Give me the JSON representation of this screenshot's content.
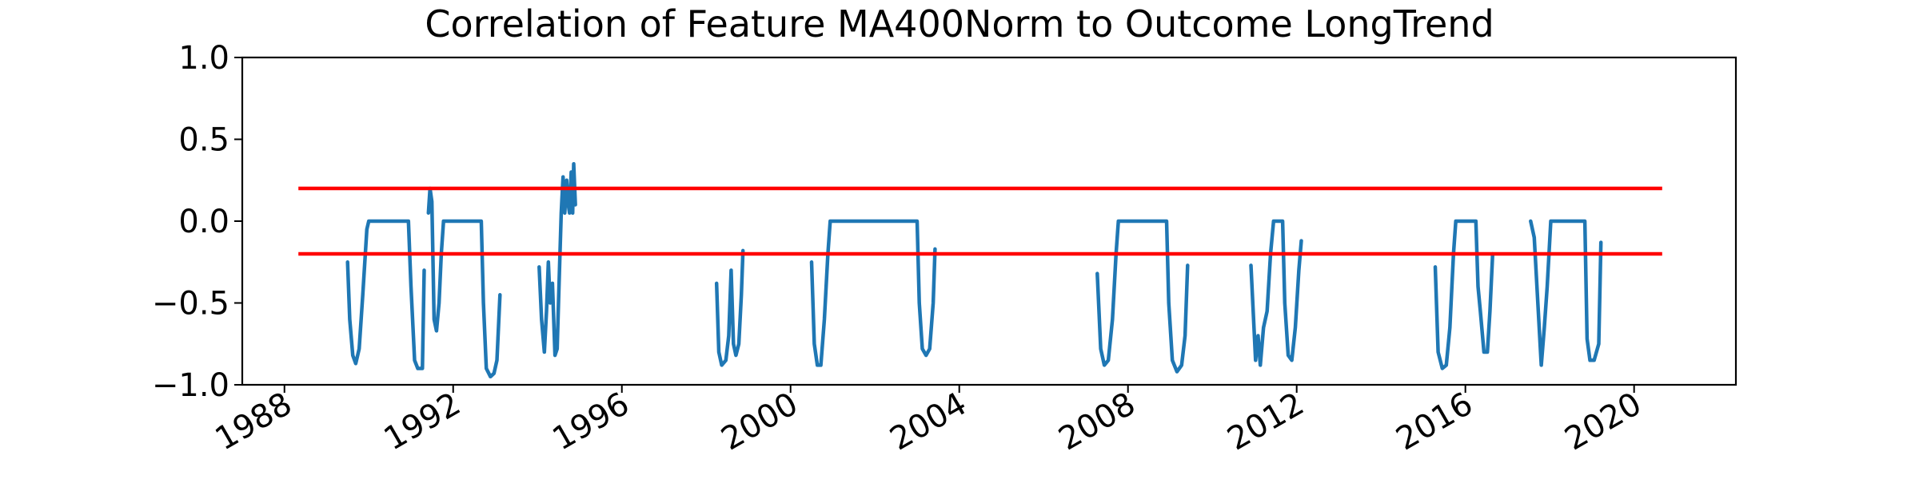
{
  "chart_data": {
    "type": "line",
    "title": "Correlation of Feature MA400Norm to Outcome LongTrend",
    "xlabel": "",
    "ylabel": "",
    "xlim": [
      "1987-01-01",
      "2022-06-01"
    ],
    "ylim": [
      -1.0,
      1.0
    ],
    "x_ticks": [
      "1988",
      "1992",
      "1996",
      "2000",
      "2004",
      "2008",
      "2012",
      "2016",
      "2020"
    ],
    "y_ticks": [
      "1.0",
      "0.5",
      "0.0",
      "−0.5",
      "−1.0"
    ],
    "grid": false,
    "legend": "none",
    "series": [
      {
        "color": "#1f77b4",
        "segments": [
          [
            [
              "1989-07-01",
              -0.25
            ],
            [
              "1989-07-20",
              -0.6
            ],
            [
              "1989-08-15",
              -0.82
            ],
            [
              "1989-09-10",
              -0.87
            ],
            [
              "1989-10-10",
              -0.78
            ],
            [
              "1989-11-10",
              -0.45
            ],
            [
              "1989-12-15",
              -0.05
            ],
            [
              "1990-01-01",
              0.0
            ],
            [
              "1990-12-10",
              0.0
            ],
            [
              "1991-01-01",
              -0.4
            ],
            [
              "1991-02-01",
              -0.85
            ],
            [
              "1991-03-01",
              -0.9
            ],
            [
              "1991-04-10",
              -0.9
            ],
            [
              "1991-04-25",
              -0.3
            ]
          ],
          [
            [
              "1991-06-01",
              0.05
            ],
            [
              "1991-06-15",
              0.2
            ],
            [
              "1991-07-01",
              0.12
            ],
            [
              "1991-07-20",
              -0.6
            ],
            [
              "1991-08-10",
              -0.67
            ],
            [
              "1991-09-01",
              -0.5
            ],
            [
              "1991-09-20",
              -0.2
            ],
            [
              "1991-10-10",
              0.0
            ],
            [
              "1992-09-01",
              0.0
            ],
            [
              "1992-09-20",
              -0.5
            ],
            [
              "1992-10-15",
              -0.9
            ],
            [
              "1992-11-20",
              -0.95
            ],
            [
              "1992-12-20",
              -0.93
            ],
            [
              "1993-01-15",
              -0.85
            ],
            [
              "1993-02-10",
              -0.45
            ]
          ],
          [
            [
              "1994-01-15",
              -0.28
            ],
            [
              "1994-02-05",
              -0.6
            ],
            [
              "1994-03-01",
              -0.8
            ],
            [
              "1994-03-20",
              -0.55
            ],
            [
              "1994-04-05",
              -0.25
            ],
            [
              "1994-04-20",
              -0.5
            ],
            [
              "1994-05-10",
              -0.38
            ],
            [
              "1994-06-01",
              -0.82
            ],
            [
              "1994-06-20",
              -0.78
            ],
            [
              "1994-07-10",
              -0.3
            ],
            [
              "1994-07-25",
              0.05
            ],
            [
              "1994-08-10",
              0.27
            ],
            [
              "1994-08-25",
              0.05
            ],
            [
              "1994-09-10",
              0.25
            ],
            [
              "1994-09-25",
              0.1
            ],
            [
              "1994-10-05",
              0.05
            ],
            [
              "1994-10-20",
              0.3
            ],
            [
              "1994-11-01",
              0.05
            ],
            [
              "1994-11-10",
              0.35
            ],
            [
              "1994-11-25",
              0.1
            ]
          ],
          [
            [
              "1998-04-01",
              -0.38
            ],
            [
              "1998-04-20",
              -0.8
            ],
            [
              "1998-05-15",
              -0.88
            ],
            [
              "1998-06-20",
              -0.85
            ],
            [
              "1998-07-15",
              -0.7
            ],
            [
              "1998-08-05",
              -0.3
            ],
            [
              "1998-08-25",
              -0.75
            ],
            [
              "1998-09-15",
              -0.82
            ],
            [
              "1998-10-10",
              -0.75
            ],
            [
              "1998-11-01",
              -0.45
            ],
            [
              "1998-11-15",
              -0.18
            ]
          ],
          [
            [
              "2000-07-01",
              -0.25
            ],
            [
              "2000-07-25",
              -0.75
            ],
            [
              "2000-08-20",
              -0.88
            ],
            [
              "2000-09-20",
              -0.88
            ],
            [
              "2000-10-20",
              -0.6
            ],
            [
              "2000-11-20",
              -0.2
            ],
            [
              "2000-12-10",
              0.0
            ],
            [
              "2003-01-01",
              0.0
            ],
            [
              "2003-01-20",
              -0.5
            ],
            [
              "2003-02-15",
              -0.78
            ],
            [
              "2003-03-20",
              -0.82
            ],
            [
              "2003-04-20",
              -0.78
            ],
            [
              "2003-05-20",
              -0.5
            ],
            [
              "2003-06-05",
              -0.17
            ]
          ],
          [
            [
              "2007-04-10",
              -0.32
            ],
            [
              "2007-05-10",
              -0.78
            ],
            [
              "2007-06-10",
              -0.88
            ],
            [
              "2007-07-15",
              -0.85
            ],
            [
              "2007-08-20",
              -0.6
            ],
            [
              "2007-09-20",
              -0.2
            ],
            [
              "2007-10-10",
              0.0
            ],
            [
              "2008-12-01",
              0.0
            ],
            [
              "2008-12-20",
              -0.5
            ],
            [
              "2009-01-20",
              -0.85
            ],
            [
              "2009-03-01",
              -0.92
            ],
            [
              "2009-04-10",
              -0.88
            ],
            [
              "2009-05-10",
              -0.7
            ],
            [
              "2009-06-01",
              -0.27
            ]
          ],
          [
            [
              "2010-12-01",
              -0.27
            ],
            [
              "2011-01-10",
              -0.85
            ],
            [
              "2011-02-01",
              -0.7
            ],
            [
              "2011-02-20",
              -0.88
            ],
            [
              "2011-03-20",
              -0.65
            ],
            [
              "2011-04-20",
              -0.55
            ],
            [
              "2011-05-20",
              -0.2
            ],
            [
              "2011-06-15",
              0.0
            ],
            [
              "2011-09-01",
              0.0
            ],
            [
              "2011-09-20",
              -0.5
            ],
            [
              "2011-10-20",
              -0.82
            ],
            [
              "2011-11-20",
              -0.85
            ],
            [
              "2011-12-20",
              -0.65
            ],
            [
              "2012-01-20",
              -0.3
            ],
            [
              "2012-02-10",
              -0.12
            ]
          ],
          [
            [
              "2015-04-15",
              -0.28
            ],
            [
              "2015-05-10",
              -0.8
            ],
            [
              "2015-06-15",
              -0.9
            ],
            [
              "2015-07-20",
              -0.88
            ],
            [
              "2015-08-20",
              -0.65
            ],
            [
              "2015-09-20",
              -0.2
            ],
            [
              "2015-10-10",
              0.0
            ],
            [
              "2016-04-01",
              0.0
            ],
            [
              "2016-04-20",
              -0.4
            ],
            [
              "2016-05-10",
              -0.55
            ],
            [
              "2016-06-10",
              -0.8
            ],
            [
              "2016-07-10",
              -0.8
            ],
            [
              "2016-08-01",
              -0.55
            ],
            [
              "2016-08-25",
              -0.2
            ]
          ],
          [
            [
              "2017-07-20",
              0.0
            ],
            [
              "2017-08-20",
              -0.1
            ],
            [
              "2017-09-20",
              -0.5
            ],
            [
              "2017-10-20",
              -0.88
            ],
            [
              "2017-11-15",
              -0.65
            ],
            [
              "2017-12-10",
              -0.4
            ],
            [
              "2018-01-10",
              0.0
            ],
            [
              "2018-11-01",
              0.0
            ],
            [
              "2018-11-20",
              -0.72
            ],
            [
              "2018-12-15",
              -0.85
            ],
            [
              "2019-01-20",
              -0.85
            ],
            [
              "2019-03-01",
              -0.75
            ],
            [
              "2019-03-20",
              -0.13
            ]
          ]
        ]
      },
      {
        "color": "#ff0000",
        "x": [
          "1988-05-01",
          "2020-09-01"
        ],
        "y": [
          0.2,
          0.2
        ]
      },
      {
        "color": "#ff0000",
        "x": [
          "1988-05-01",
          "2020-09-01"
        ],
        "y": [
          -0.2,
          -0.2
        ]
      }
    ]
  }
}
